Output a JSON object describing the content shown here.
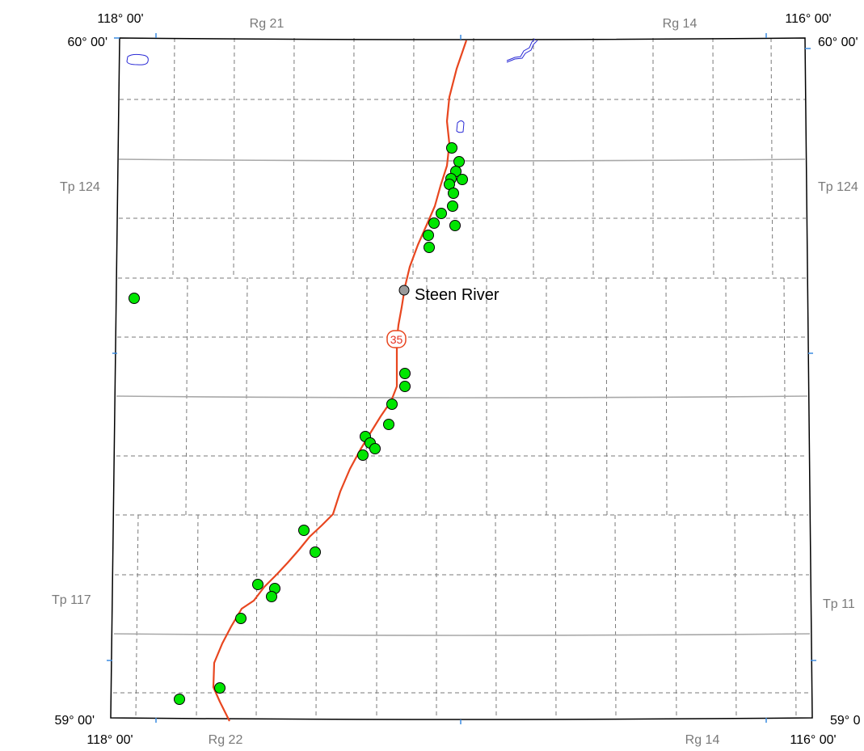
{
  "map": {
    "corner_labels": {
      "top_left_longitude": "118° 00'",
      "top_right_longitude": "116° 00'",
      "bottom_left_longitude": "118° 00'",
      "bottom_right_longitude": "116° 00'",
      "top_left_latitude": "60° 00'",
      "top_right_latitude": "60° 00'",
      "bottom_left_latitude": "59° 00'",
      "bottom_right_latitude": "59° 0"
    },
    "range_labels": {
      "top_left": "Rg 21",
      "top_right": "Rg 14",
      "bottom_left": "Rg 22",
      "bottom_right": "Rg 14"
    },
    "township_labels": {
      "left_upper": "Tp 124",
      "right_upper": "Tp 124",
      "left_lower": "Tp 117",
      "right_lower": "Tp 11"
    },
    "place": {
      "name": "Steen River"
    },
    "highway": {
      "number": "35",
      "color": "#e8461f"
    },
    "colors": {
      "site_fill": "#00e600",
      "town_fill": "#9a9a9a",
      "water": "#2a2ad6",
      "frame": "#000000",
      "township_line": "#a8a8a8",
      "section_line": "#7a7a7a",
      "tick_mark": "#3a8ae0"
    },
    "site_marker_count": 34
  }
}
